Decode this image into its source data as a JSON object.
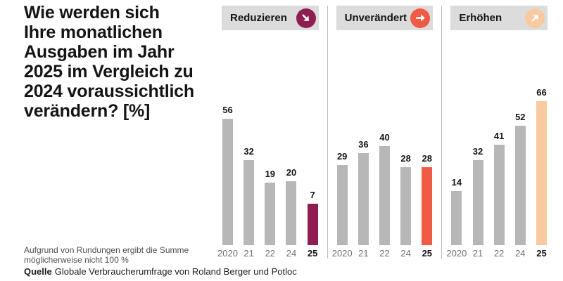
{
  "title": "Wie werden sich\nIhre monatlichen\nAusgaben im Jahr\n2025 im Vergleich zu\n2024 voraussichtlich\nverändern? [%]",
  "footnote": "Aufgrund von Rundungen ergibt die Summe\nmöglicherweise nicht 100 %",
  "source": {
    "label": "Quelle",
    "text": "Globale Verbraucherumfrage von Roland Berger und Potloc"
  },
  "colors": {
    "bar_default": "#b7b7b7",
    "panel_header_bg": "#dcdcdc",
    "divider": "#bdbdbd",
    "year_label": "#707070",
    "highlight_year_label": "#141414",
    "reduzieren_accent": "#8e1e4f",
    "unveraendert_accent": "#ef5b45",
    "erhoehen_accent": "#f9c9a0"
  },
  "chart_data": [
    {
      "type": "bar",
      "title": "Reduzieren",
      "icon": "arrow-down-right-icon",
      "accent": "#8e1e4f",
      "unit": "%",
      "categories": [
        "2020",
        "21",
        "22",
        "24",
        "25"
      ],
      "values": [
        56,
        32,
        19,
        20,
        7
      ],
      "highlight_index": 4,
      "legend_position": "none",
      "grid": false
    },
    {
      "type": "bar",
      "title": "Unverändert",
      "icon": "arrow-right-icon",
      "accent": "#ef5b45",
      "unit": "%",
      "categories": [
        "2020",
        "21",
        "22",
        "24",
        "25"
      ],
      "values": [
        29,
        36,
        40,
        28,
        28
      ],
      "highlight_index": 4,
      "legend_position": "none",
      "grid": false
    },
    {
      "type": "bar",
      "title": "Erhöhen",
      "icon": "arrow-up-right-icon",
      "accent": "#f9c9a0",
      "unit": "%",
      "categories": [
        "2020",
        "21",
        "22",
        "24",
        "25"
      ],
      "values": [
        14,
        32,
        41,
        52,
        66
      ],
      "highlight_index": 4,
      "legend_position": "none",
      "grid": false
    }
  ]
}
